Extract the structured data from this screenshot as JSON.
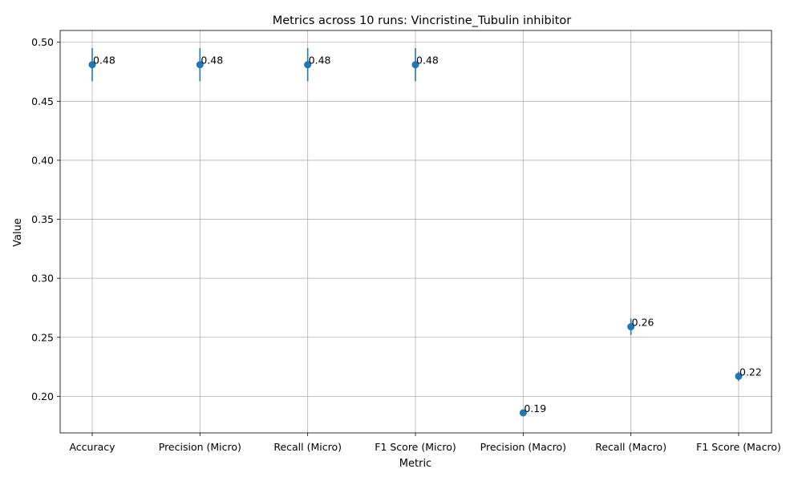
{
  "chart_data": {
    "type": "scatter",
    "title": "Metrics across 10 runs: Vincristine_Tubulin inhibitor",
    "xlabel": "Metric",
    "ylabel": "Value",
    "categories": [
      "Accuracy",
      "Precision (Micro)",
      "Recall (Micro)",
      "F1 Score (Micro)",
      "Precision (Macro)",
      "Recall (Macro)",
      "F1 Score (Macro)"
    ],
    "values": [
      0.481,
      0.481,
      0.481,
      0.481,
      0.186,
      0.259,
      0.217
    ],
    "errors": [
      0.014,
      0.014,
      0.014,
      0.014,
      0.002,
      0.007,
      0.004
    ],
    "data_labels": [
      "0.48",
      "0.48",
      "0.48",
      "0.48",
      "0.19",
      "0.26",
      "0.22"
    ],
    "ylim": [
      0.169,
      0.51
    ],
    "yticks": [
      0.2,
      0.25,
      0.3,
      0.35,
      0.4,
      0.45,
      0.5
    ],
    "ytick_labels": [
      "0.20",
      "0.25",
      "0.30",
      "0.35",
      "0.40",
      "0.45",
      "0.50"
    ],
    "grid": true,
    "marker_color": "#1f77b4"
  }
}
